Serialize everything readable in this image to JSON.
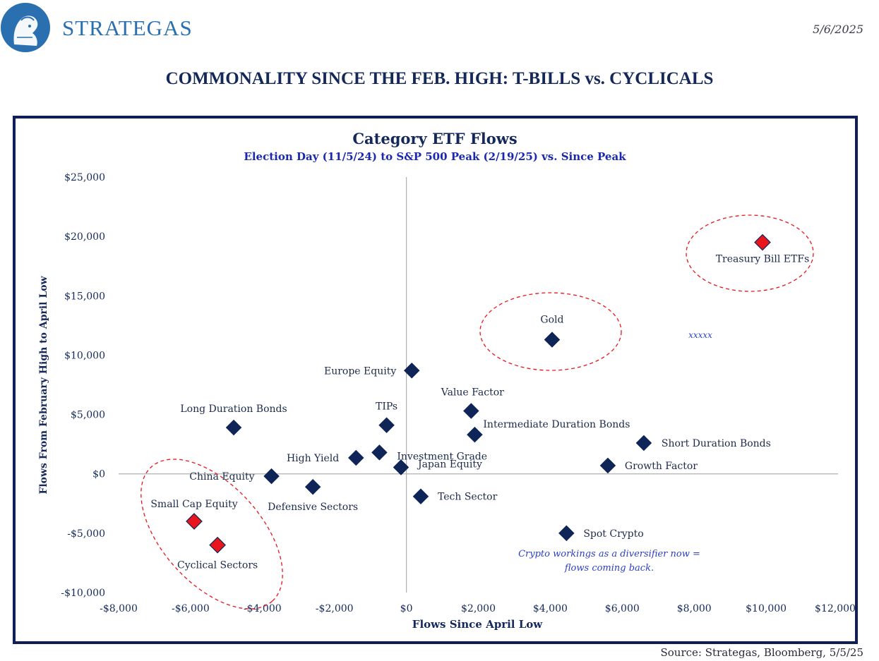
{
  "header": {
    "brand": "STRATEGAS",
    "date": "5/6/2025",
    "headline": "COMMONALITY SINCE THE FEB. HIGH: T-BILLS vs. CYCLICALS"
  },
  "footer": {
    "source": "Source: Strategas, Bloomberg, 5/5/25"
  },
  "colors": {
    "navy": "#0f2557",
    "highlight": "#e8161c",
    "annotation_blue": "#2a3fc8",
    "axis_line": "#b0b0b0"
  },
  "chart_data": {
    "type": "scatter",
    "title": "Category ETF Flows",
    "subtitle": "Election Day (11/5/24) to S&P 500 Peak (2/19/25) vs. Since Peak",
    "xlabel": "Flows Since April Low",
    "ylabel": "Flows From February High to April Low",
    "xlim": [
      -8000,
      12000
    ],
    "ylim": [
      -10000,
      25000
    ],
    "x_ticks": [
      -8000,
      -6000,
      -4000,
      -2000,
      0,
      2000,
      4000,
      6000,
      8000,
      10000,
      12000
    ],
    "y_ticks": [
      -10000,
      -5000,
      0,
      5000,
      10000,
      15000,
      20000,
      25000
    ],
    "x_tick_labels": [
      "-$8,000",
      "-$6,000",
      "-$4,000",
      "-$2,000",
      "$0",
      "$2,000",
      "$4,000",
      "$6,000",
      "$8,000",
      "$10,000",
      "$12,000"
    ],
    "y_tick_labels": [
      "-$10,000",
      "-$5,000",
      "$0",
      "$5,000",
      "$10,000",
      "$15,000",
      "$20,000",
      "$25,000"
    ],
    "grid": false,
    "points": [
      {
        "label": "Treasury Bill ETFs",
        "x": 9900,
        "y": 19500,
        "highlight": true
      },
      {
        "label": "Gold",
        "x": 4050,
        "y": 11300,
        "highlight": false
      },
      {
        "label": "Europe Equity",
        "x": 150,
        "y": 8700,
        "highlight": false
      },
      {
        "label": "Value Factor",
        "x": 1800,
        "y": 5300,
        "highlight": false
      },
      {
        "label": "Long Duration Bonds",
        "x": -4800,
        "y": 3900,
        "highlight": false
      },
      {
        "label": "TIPs",
        "x": -550,
        "y": 4100,
        "highlight": false
      },
      {
        "label": "Intermediate Duration Bonds",
        "x": 1900,
        "y": 3300,
        "highlight": false
      },
      {
        "label": "Short Duration Bonds",
        "x": 6600,
        "y": 2600,
        "highlight": false
      },
      {
        "label": "Investment Grade",
        "x": -750,
        "y": 1800,
        "highlight": false
      },
      {
        "label": "High Yield",
        "x": -1400,
        "y": 1350,
        "highlight": false
      },
      {
        "label": "Japan Equity",
        "x": -150,
        "y": 550,
        "highlight": false
      },
      {
        "label": "Growth Factor",
        "x": 5600,
        "y": 700,
        "highlight": false
      },
      {
        "label": "China Equity",
        "x": -3750,
        "y": -200,
        "highlight": false
      },
      {
        "label": "Defensive Sectors",
        "x": -2600,
        "y": -1100,
        "highlight": false
      },
      {
        "label": "Tech Sector",
        "x": 400,
        "y": -1900,
        "highlight": false
      },
      {
        "label": "Small Cap Equity",
        "x": -5900,
        "y": -4000,
        "highlight": true
      },
      {
        "label": "Cyclical Sectors",
        "x": -5250,
        "y": -6000,
        "highlight": true
      },
      {
        "label": "Spot Crypto",
        "x": 4450,
        "y": -5000,
        "highlight": false
      }
    ],
    "annotations": [
      {
        "text": "xxxxx"
      },
      {
        "text": "Crypto workings as a diversifier now ="
      },
      {
        "text": "flows coming back."
      }
    ]
  }
}
